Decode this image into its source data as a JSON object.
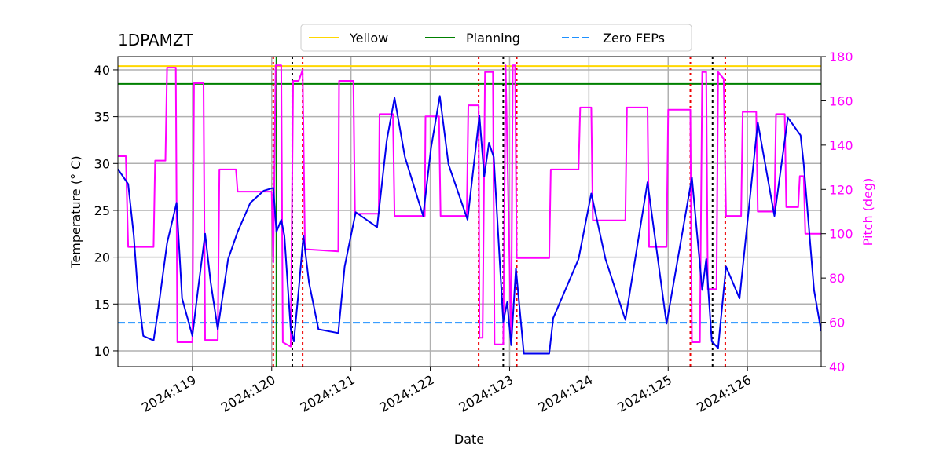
{
  "chart_data": {
    "type": "line",
    "title": "1DPAMZT",
    "xlabel": "Date",
    "ylabel": "Temperature (° C)",
    "y2label": "Pitch (deg)",
    "y2color": "#ff00ff",
    "grid": true,
    "legend": "upper center",
    "xlim": [
      118.06,
      126.93
    ],
    "xticks": [
      {
        "value": 119,
        "label": "2024:119"
      },
      {
        "value": 120,
        "label": "2024:120"
      },
      {
        "value": 121,
        "label": "2024:121"
      },
      {
        "value": 122,
        "label": "2024:122"
      },
      {
        "value": 123,
        "label": "2024:123"
      },
      {
        "value": 124,
        "label": "2024:124"
      },
      {
        "value": 125,
        "label": "2024:125"
      },
      {
        "value": 126,
        "label": "2024:126"
      }
    ],
    "ylim": [
      8.32,
      41.42
    ],
    "yticks": [
      10,
      15,
      20,
      25,
      30,
      35,
      40
    ],
    "y2lim": [
      40,
      180
    ],
    "y2ticks": [
      40,
      60,
      80,
      100,
      120,
      140,
      160,
      180
    ],
    "series": [
      {
        "color": "#0000ee",
        "axis": "y",
        "x": [
          118.06,
          118.19,
          118.26,
          118.31,
          118.38,
          118.51,
          118.56,
          118.68,
          118.8,
          118.87,
          119.0,
          119.07,
          119.16,
          119.23,
          119.32,
          119.45,
          119.57,
          119.73,
          119.9,
          120.02,
          120.06,
          120.12,
          120.16,
          120.24,
          120.28,
          120.34,
          120.4,
          120.47,
          120.59,
          120.84,
          120.92,
          121.06,
          121.33,
          121.45,
          121.55,
          121.68,
          121.91,
          122.01,
          122.12,
          122.23,
          122.47,
          122.62,
          122.68,
          122.74,
          122.8,
          122.92,
          122.97,
          123.02,
          123.08,
          123.18,
          123.5,
          123.55,
          123.87,
          124.03,
          124.21,
          124.46,
          124.74,
          124.98,
          125.3,
          125.43,
          125.48,
          125.55,
          125.63,
          125.73,
          125.9,
          126.13,
          126.34,
          126.51,
          126.67,
          126.71,
          126.84,
          126.93
        ],
        "values": [
          29.4,
          27.8,
          22.3,
          16.5,
          11.6,
          11.1,
          13.9,
          21.5,
          25.8,
          15.6,
          11.6,
          16.5,
          22.5,
          17.3,
          12.3,
          19.8,
          22.7,
          25.8,
          27.1,
          27.4,
          22.7,
          24.0,
          22.3,
          12.3,
          11.0,
          16.5,
          22.3,
          17.3,
          12.3,
          11.9,
          19.0,
          24.8,
          23.2,
          32.4,
          37.0,
          30.7,
          24.4,
          31.7,
          37.2,
          29.9,
          24.0,
          35.1,
          28.6,
          32.2,
          30.7,
          13.1,
          15.2,
          10.6,
          18.8,
          9.7,
          9.7,
          13.5,
          19.8,
          26.8,
          19.8,
          13.3,
          28.0,
          12.9,
          28.5,
          16.5,
          19.8,
          11.0,
          10.3,
          19.0,
          15.6,
          34.4,
          24.4,
          34.9,
          33.0,
          29.9,
          16.5,
          12.1
        ]
      },
      {
        "color": "#ff00ff",
        "axis": "y2",
        "x": [
          118.06,
          118.16,
          118.19,
          118.51,
          118.53,
          118.66,
          118.68,
          118.79,
          118.81,
          119.0,
          119.02,
          119.14,
          119.16,
          119.32,
          119.34,
          119.55,
          119.57,
          120.0,
          120.02,
          120.05,
          120.12,
          120.14,
          120.24,
          120.27,
          120.34,
          120.39,
          120.42,
          120.84,
          120.85,
          121.03,
          121.05,
          121.35,
          121.36,
          121.53,
          121.55,
          121.93,
          121.94,
          122.11,
          122.13,
          122.46,
          122.48,
          122.61,
          122.62,
          122.66,
          122.69,
          122.79,
          122.81,
          122.92,
          122.95,
          123.02,
          123.04,
          123.07,
          123.09,
          123.5,
          123.52,
          123.87,
          123.89,
          124.03,
          124.05,
          124.46,
          124.48,
          124.74,
          124.76,
          124.98,
          125.0,
          125.28,
          125.3,
          125.4,
          125.43,
          125.48,
          125.5,
          125.61,
          125.63,
          125.7,
          125.73,
          125.92,
          125.94,
          126.11,
          126.13,
          126.34,
          126.36,
          126.47,
          126.49,
          126.64,
          126.66,
          126.71,
          126.73,
          126.93
        ],
        "values": [
          135,
          135,
          94,
          94,
          133,
          133,
          175,
          175,
          51,
          51,
          168,
          168,
          52,
          52,
          129,
          129,
          119,
          119,
          87,
          176,
          176,
          51,
          49,
          169,
          169,
          174,
          93,
          92,
          169,
          169,
          109,
          109,
          154,
          154,
          108,
          108,
          153,
          153,
          108,
          108,
          158,
          158,
          53,
          53,
          173,
          173,
          50,
          50,
          176,
          50,
          176,
          176,
          89,
          89,
          129,
          129,
          157,
          157,
          106,
          106,
          157,
          157,
          94,
          94,
          156,
          156,
          51,
          51,
          173,
          173,
          75,
          75,
          173,
          170,
          108,
          108,
          155,
          155,
          110,
          110,
          154,
          154,
          112,
          112,
          126,
          126,
          100,
          100
        ]
      }
    ],
    "hlines": [
      {
        "name": "Yellow",
        "color": "#ffd700",
        "style": "solid",
        "value": 40.4
      },
      {
        "name": "Planning",
        "color": "#008000",
        "style": "solid",
        "value": 38.5
      },
      {
        "name": "Zero FEPs",
        "color": "#1e90ff",
        "style": "dashed",
        "value": 13
      }
    ],
    "vlines": [
      {
        "color": "#008000",
        "style": "solid",
        "value": 120.06
      },
      {
        "color": "#ee0000",
        "style": "dotted",
        "value": 120.02
      },
      {
        "color": "#ee0000",
        "style": "dotted",
        "value": 120.39
      },
      {
        "color": "#ee0000",
        "style": "dotted",
        "value": 122.61
      },
      {
        "color": "#ee0000",
        "style": "dotted",
        "value": 123.09
      },
      {
        "color": "#ee0000",
        "style": "dotted",
        "value": 125.28
      },
      {
        "color": "#ee0000",
        "style": "dotted",
        "value": 125.72
      },
      {
        "color": "#000000",
        "style": "dotted",
        "value": 120.26
      },
      {
        "color": "#000000",
        "style": "dotted",
        "value": 122.92
      },
      {
        "color": "#000000",
        "style": "dotted",
        "value": 125.56
      }
    ]
  }
}
